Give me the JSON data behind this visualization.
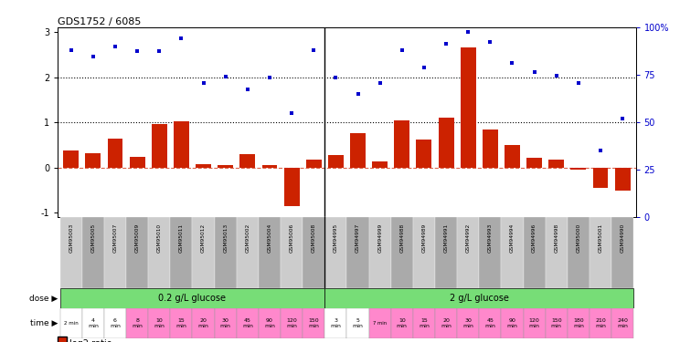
{
  "title": "GDS1752 / 6085",
  "samples": [
    "GSM95003",
    "GSM95005",
    "GSM95007",
    "GSM95009",
    "GSM95010",
    "GSM95011",
    "GSM95012",
    "GSM95013",
    "GSM95002",
    "GSM95004",
    "GSM95006",
    "GSM95008",
    "GSM94995",
    "GSM94997",
    "GSM94999",
    "GSM94988",
    "GSM94989",
    "GSM94991",
    "GSM94992",
    "GSM94993",
    "GSM94994",
    "GSM94996",
    "GSM94998",
    "GSM95000",
    "GSM95001",
    "GSM94990"
  ],
  "log2_ratio": [
    0.38,
    0.32,
    0.65,
    0.23,
    0.97,
    1.02,
    0.08,
    0.05,
    0.3,
    0.05,
    -0.85,
    0.17,
    0.27,
    0.76,
    0.13,
    1.05,
    0.63,
    1.1,
    2.65,
    0.85,
    0.5,
    0.22,
    0.18,
    -0.05,
    -0.45,
    -0.5
  ],
  "percentile": [
    2.6,
    2.45,
    2.67,
    2.58,
    2.58,
    2.85,
    1.88,
    2.02,
    1.72,
    2.0,
    1.2,
    2.6,
    2.0,
    1.62,
    1.88,
    2.6,
    2.22,
    2.73,
    3.0,
    2.78,
    2.32,
    2.12,
    2.03,
    1.88,
    0.37,
    1.08
  ],
  "dose_label1": "0.2 g/L glucose",
  "dose_label2": "2 g/L glucose",
  "n_group1": 12,
  "n_group2": 14,
  "bar_color": "#cc2200",
  "dot_color": "#0000cc",
  "dose_color_green": "#77dd77",
  "time_color_pink": "#ff88cc",
  "time_color_white": "#ffffff",
  "ylim_left": [
    -1.1,
    3.1
  ],
  "ylim_right": [
    0,
    100
  ],
  "yticks_left": [
    -1,
    0,
    1,
    2,
    3
  ],
  "yticks_right": [
    0,
    25,
    50,
    75,
    100
  ],
  "yticklabels_right": [
    "0",
    "25",
    "50",
    "75",
    "100%"
  ],
  "time1": [
    "2 min",
    "4\nmin",
    "6\nmin",
    "8\nmin",
    "10\nmin",
    "15\nmin",
    "20\nmin",
    "30\nmin",
    "45\nmin",
    "90\nmin",
    "120\nmin",
    "150\nmin"
  ],
  "time1_colors": [
    "white",
    "white",
    "white",
    "pink",
    "pink",
    "pink",
    "pink",
    "pink",
    "pink",
    "pink",
    "pink",
    "pink"
  ],
  "time2": [
    "3\nmin",
    "5\nmin",
    "7 min",
    "10\nmin",
    "15\nmin",
    "20\nmin",
    "30\nmin",
    "45\nmin",
    "90\nmin",
    "120\nmin",
    "150\nmin",
    "180\nmin",
    "210\nmin",
    "240\nmin"
  ],
  "time2_colors": [
    "white",
    "white",
    "pink",
    "pink",
    "pink",
    "pink",
    "pink",
    "pink",
    "pink",
    "pink",
    "pink",
    "pink",
    "pink",
    "pink"
  ]
}
